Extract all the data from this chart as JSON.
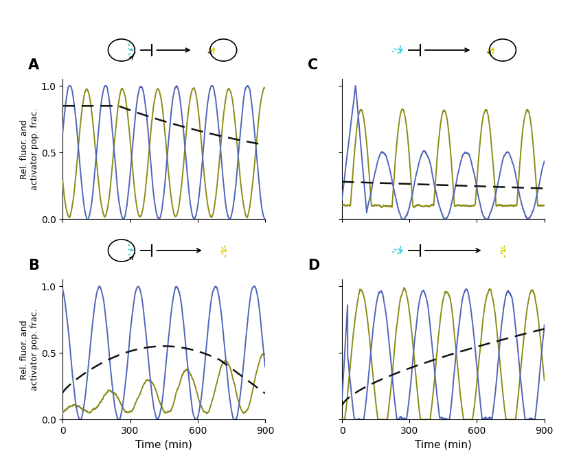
{
  "blue_color": "#5066B8",
  "olive_color": "#8C8C1A",
  "dashed_color": "#111111",
  "bg_color": "#FFFFFF",
  "ylabel": "Rel. fluor. and\nactivator pop. frac.",
  "xlabel": "Time (min)",
  "xlim": [
    0,
    900
  ],
  "ylim": [
    0,
    1.05
  ],
  "xticks": [
    0,
    300,
    600,
    900
  ],
  "yticks": [
    0,
    0.5,
    1
  ],
  "panel_labels": [
    "A",
    "B",
    "C",
    "D"
  ],
  "figsize": [
    8.3,
    6.79
  ],
  "dpi": 100,
  "cyan_color": "#33CCDD",
  "yellow_color": "#DDCC00"
}
